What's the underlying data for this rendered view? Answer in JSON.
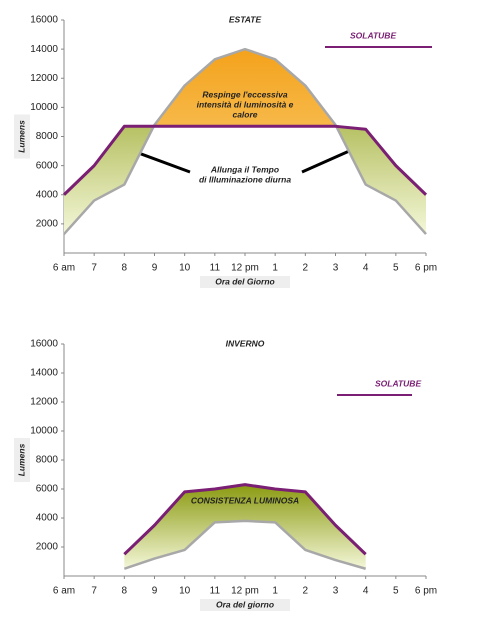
{
  "chart_data": [
    {
      "type": "line",
      "title": "ESTATE",
      "y_label": "Lumens",
      "x_label": "Ora del Giorno",
      "categories": [
        "6 am",
        "7",
        "8",
        "9",
        "10",
        "11",
        "12 pm",
        "1",
        "2",
        "3",
        "4",
        "5",
        "6 pm"
      ],
      "series": [
        {
          "name": "SOLATUBE",
          "color": "#7a1f74",
          "values": [
            4000,
            6000,
            8700,
            8700,
            8700,
            8700,
            8700,
            8700,
            8700,
            8700,
            8500,
            6000,
            4000
          ]
        },
        {
          "color": "#a8a8a8",
          "values": [
            1300,
            3600,
            4700,
            8800,
            11500,
            13300,
            14000,
            13300,
            11500,
            8800,
            4700,
            3600,
            1300
          ]
        }
      ],
      "ylim": [
        0,
        16000
      ],
      "yticks": [
        2000,
        4000,
        6000,
        8000,
        10000,
        12000,
        14000,
        16000
      ],
      "legend": "upper right",
      "grid": false,
      "annotations": [
        [
          "Respinge l'eccessiva",
          "intensità di luminosità e",
          "calore"
        ],
        [
          "Allunga il Tempo",
          "di Illuminazione diurna"
        ]
      ]
    },
    {
      "type": "line",
      "title": "INVERNO",
      "y_label": "Lumens",
      "x_label": "Ora del giorno",
      "categories": [
        "6 am",
        "7",
        "8",
        "9",
        "10",
        "11",
        "12 pm",
        "1",
        "2",
        "3",
        "4",
        "5",
        "6 pm"
      ],
      "series": [
        {
          "name": "SOLATUBE",
          "color": "#7a1f74",
          "values": [
            null,
            null,
            1500,
            3500,
            5800,
            6000,
            6300,
            6000,
            5800,
            3500,
            1500,
            null,
            null
          ]
        },
        {
          "color": "#a8a8a8",
          "values": [
            null,
            null,
            500,
            1200,
            1800,
            3700,
            3800,
            3700,
            1800,
            1100,
            500,
            null,
            null
          ]
        }
      ],
      "ylim": [
        0,
        16000
      ],
      "yticks": [
        2000,
        4000,
        6000,
        8000,
        10000,
        12000,
        14000,
        16000
      ],
      "legend": "upper right",
      "grid": false,
      "annotations": [
        [
          "CONSISTENZA LUMINOSA"
        ]
      ]
    }
  ]
}
